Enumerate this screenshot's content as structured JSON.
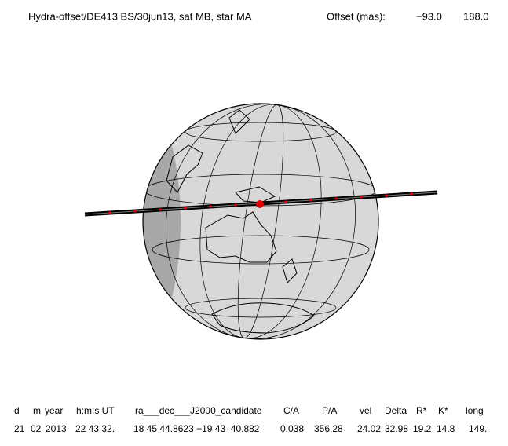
{
  "header": {
    "title": "Hydra-offset/DE413 BS/30jun13, sat MB, star MA",
    "offset_label": "Offset (mas):",
    "offset_x": "−93.0",
    "offset_y": "188.0"
  },
  "table": {
    "columns": [
      "d",
      "m",
      "year",
      "h:m:s UT",
      "ra___dec___J2000_candidate",
      "C/A",
      "P/A",
      "vel",
      "Delta",
      "R*",
      "K*",
      "long"
    ],
    "rows": [
      [
        "21",
        "02",
        "2013",
        "22 43 32.",
        "18 45 44.8623 −19 43  40.882",
        "0.038",
        "356.28",
        "24.02",
        "32.98",
        "19.2",
        "14.8",
        "149."
      ]
    ]
  }
}
